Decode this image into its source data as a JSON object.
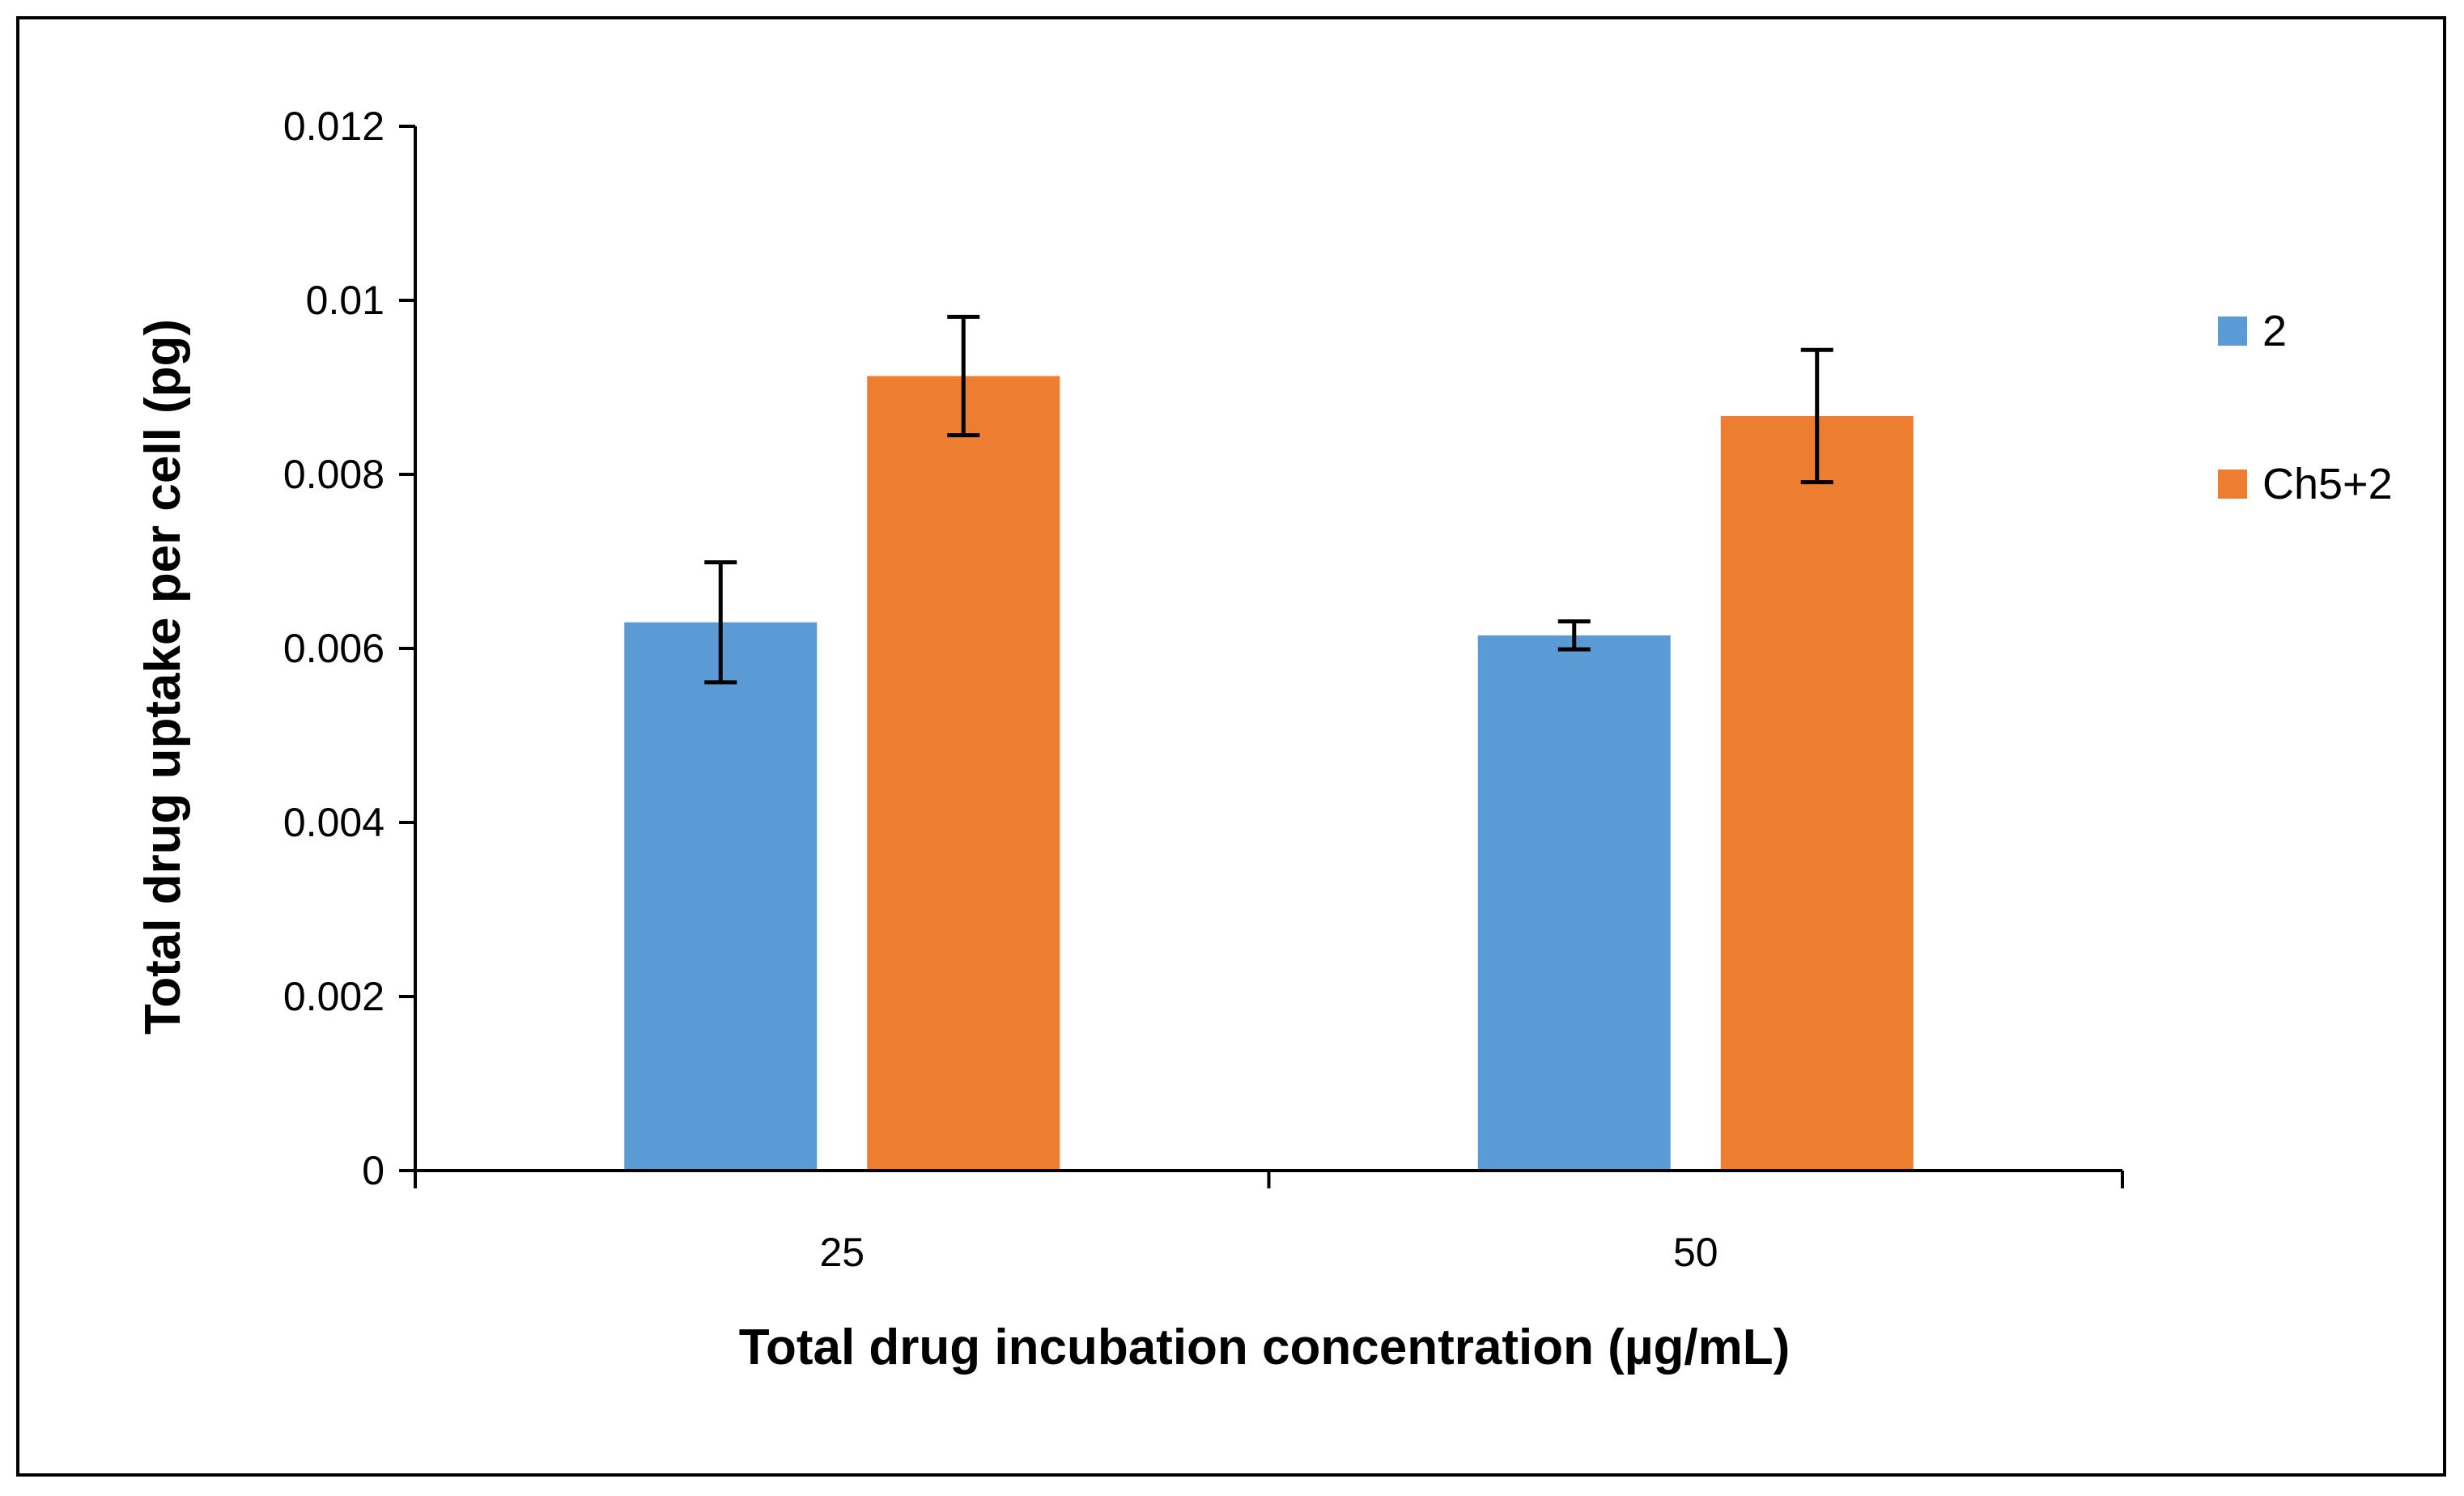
{
  "chart_data": {
    "type": "bar",
    "title": "",
    "xlabel": "Total drug incubation concentration (µg/mL)",
    "ylabel": "Total drug uptake per cell (pg)",
    "categories": [
      "25",
      "50"
    ],
    "ylim": [
      0,
      0.012
    ],
    "yticks": [
      "0",
      "0.002",
      "0.004",
      "0.006",
      "0.008",
      "0.01",
      "0.012"
    ],
    "ytick_values": [
      0,
      0.002,
      0.004,
      0.006,
      0.008,
      0.01,
      0.012
    ],
    "grid": false,
    "legend_position": "right",
    "series": [
      {
        "name": "2",
        "color": "#5B9BD5",
        "values": [
          0.0063,
          0.00615
        ],
        "errors": [
          0.00069,
          0.00016
        ]
      },
      {
        "name": "Ch5+2",
        "color": "#ED7D31",
        "values": [
          0.00913,
          0.00867
        ],
        "errors": [
          0.00068,
          0.00076
        ]
      }
    ]
  }
}
